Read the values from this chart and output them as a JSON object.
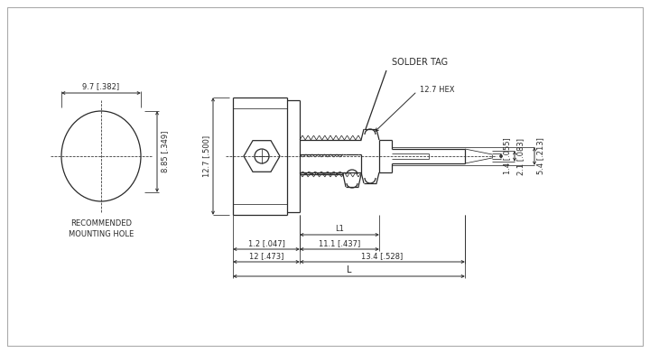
{
  "bg_color": "#ffffff",
  "line_color": "#2a2a2a",
  "dim_color": "#2a2a2a",
  "font_size_small": 6.0,
  "font_size_mid": 7.0,
  "recommended_mounting_hole": "RECOMMENDED\nMOUNTING HOLE",
  "solder_tag": "SOLDER TAG",
  "hex_label": "12.7 HEX",
  "dims": {
    "circle_d": "9.7 [.382]",
    "circle_h": "8.85 [.349]",
    "height": "12.7 [.500]",
    "l1": "L1",
    "d1": "1.2 [.047]",
    "d2": "11.1 [.437]",
    "d3": "12 [.473]",
    "d4": "13.4 [.528]",
    "L": "L",
    "r1": "1.4 [.055]",
    "r2": "2.1 [.083]",
    "r3": "5.4 [.213]"
  }
}
